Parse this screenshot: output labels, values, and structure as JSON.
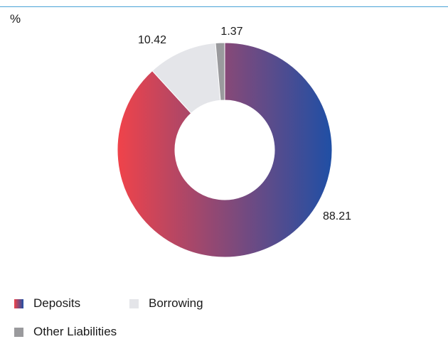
{
  "chart_data": {
    "type": "pie",
    "donut": true,
    "unit": "%",
    "categories": [
      "Deposits",
      "Borrowing",
      "Other Liabilities"
    ],
    "values": [
      88.21,
      10.42,
      1.37
    ],
    "value_labels": [
      "88.21",
      "10.42",
      "1.37"
    ],
    "colors": {
      "Deposits": [
        "#f0434a",
        "#1f4fa5"
      ],
      "Borrowing": "#e4e5e9",
      "Other Liabilities": "#9a9a9d"
    },
    "legend_position": "bottom-left"
  },
  "legend": [
    {
      "label": "Deposits",
      "swatch": "gradient"
    },
    {
      "label": "Borrowing",
      "swatch": "#e4e5e9"
    },
    {
      "label": "Other Liabilities",
      "swatch": "#9a9a9d"
    }
  ]
}
